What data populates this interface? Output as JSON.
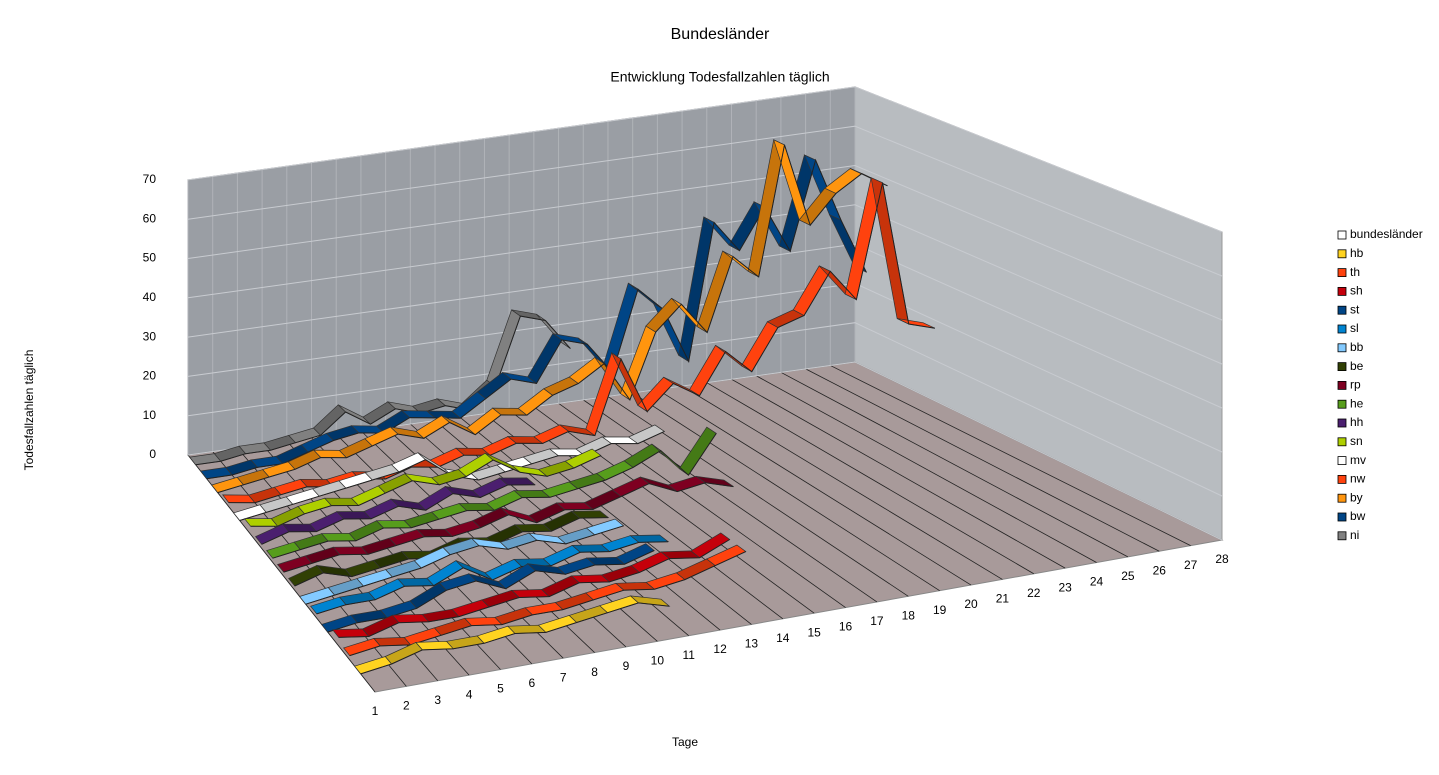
{
  "chart_data": {
    "type": "line3d",
    "title": "Bundesländer",
    "subtitle": "Entwicklung Todesfallzahlen täglich",
    "x_label": "Tage",
    "y_label": "Todesfallzahlen täglich",
    "categories": [
      1,
      2,
      3,
      4,
      5,
      6,
      7,
      8,
      9,
      10,
      11,
      12,
      13,
      14,
      15,
      16,
      17,
      18,
      19,
      20,
      21,
      22,
      23,
      24,
      25,
      26,
      27,
      28
    ],
    "ylim": [
      0,
      70
    ],
    "yticks": [
      0,
      10,
      20,
      30,
      40,
      50,
      60,
      70
    ],
    "grid": true,
    "legend": "right",
    "series": [
      {
        "name": "bundesländer",
        "color": "#ffffff",
        "values": [
          null,
          null,
          null,
          null,
          null,
          null,
          null,
          null,
          null,
          null,
          null,
          null,
          null,
          null,
          null,
          null,
          null,
          null,
          null,
          null,
          null,
          null,
          null,
          null,
          null,
          null,
          null,
          null
        ]
      },
      {
        "name": "hb",
        "color": "#ffd320",
        "values": [
          0,
          1,
          3,
          2,
          2,
          3,
          2,
          3,
          4,
          5,
          3,
          null,
          null,
          null,
          null,
          null,
          null,
          null,
          null,
          null,
          null,
          null,
          null,
          null,
          null,
          null,
          null,
          null
        ]
      },
      {
        "name": "th",
        "color": "#ff420e",
        "values": [
          1,
          2,
          1,
          2,
          3,
          2,
          3,
          3,
          4,
          5,
          4,
          5,
          7,
          9,
          null,
          null,
          null,
          null,
          null,
          null,
          null,
          null,
          null,
          null,
          null,
          null,
          null,
          null
        ]
      },
      {
        "name": "sh",
        "color": "#c5000b",
        "values": [
          2,
          1,
          3,
          2,
          2,
          3,
          4,
          3,
          5,
          4,
          5,
          7,
          6,
          9,
          null,
          null,
          null,
          null,
          null,
          null,
          null,
          null,
          null,
          null,
          null,
          null,
          null,
          null
        ]
      },
      {
        "name": "st",
        "color": "#004586",
        "values": [
          0,
          1,
          1,
          2,
          5,
          6,
          3,
          6,
          4,
          5,
          4,
          6,
          null,
          null,
          null,
          null,
          null,
          null,
          null,
          null,
          null,
          null,
          null,
          null,
          null,
          null,
          null,
          null
        ]
      },
      {
        "name": "sl",
        "color": "#0084d1",
        "values": [
          1,
          2,
          2,
          4,
          3,
          6,
          2,
          4,
          3,
          5,
          4,
          5,
          4,
          null,
          null,
          null,
          null,
          null,
          null,
          null,
          null,
          null,
          null,
          null,
          null,
          null,
          null,
          null
        ]
      },
      {
        "name": "bb",
        "color": "#83caff",
        "values": [
          0,
          1,
          2,
          3,
          4,
          6,
          7,
          5,
          6,
          4,
          5,
          6,
          null,
          null,
          null,
          null,
          null,
          null,
          null,
          null,
          null,
          null,
          null,
          null,
          null,
          null,
          null,
          null
        ]
      },
      {
        "name": "be",
        "color": "#314004",
        "values": [
          1,
          3,
          1,
          2,
          3,
          2,
          4,
          3,
          5,
          4,
          6,
          5,
          null,
          null,
          null,
          null,
          null,
          null,
          null,
          null,
          null,
          null,
          null,
          null,
          null,
          null,
          null,
          null
        ]
      },
      {
        "name": "rp",
        "color": "#7e0021",
        "values": [
          1,
          2,
          3,
          2,
          3,
          4,
          3,
          4,
          6,
          3,
          5,
          4,
          6,
          8,
          5,
          6,
          4,
          null,
          null,
          null,
          null,
          null,
          null,
          null,
          null,
          null,
          null,
          null
        ]
      },
      {
        "name": "he",
        "color": "#579d1c",
        "values": [
          1,
          2,
          3,
          2,
          4,
          3,
          4,
          5,
          4,
          6,
          5,
          6,
          7,
          9,
          12,
          5,
          14,
          null,
          null,
          null,
          null,
          null,
          null,
          null,
          null,
          null,
          null,
          null
        ]
      },
      {
        "name": "hh",
        "color": "#4b1f6f",
        "values": [
          1,
          3,
          2,
          4,
          3,
          5,
          3,
          6,
          4,
          6,
          5,
          null,
          null,
          null,
          null,
          null,
          null,
          null,
          null,
          null,
          null,
          null,
          null,
          null,
          null,
          null,
          null,
          null
        ]
      },
      {
        "name": "sn",
        "color": "#aecf00",
        "values": [
          2,
          1,
          3,
          4,
          3,
          5,
          7,
          5,
          6,
          9,
          5,
          3,
          4,
          6,
          null,
          null,
          null,
          null,
          null,
          null,
          null,
          null,
          null,
          null,
          null,
          null,
          null,
          null
        ]
      },
      {
        "name": "mv",
        "color": "#ffffff",
        "values": [
          0,
          1,
          2,
          3,
          4,
          5,
          6,
          8,
          3,
          1,
          2,
          3,
          4,
          3,
          5,
          4,
          6,
          null,
          null,
          null,
          null,
          null,
          null,
          null,
          null,
          null,
          null,
          null
        ]
      },
      {
        "name": "nw",
        "color": "#ff420e",
        "values": [
          1,
          0,
          1,
          2,
          1,
          2,
          1,
          3,
          2,
          4,
          3,
          5,
          4,
          6,
          4,
          22,
          8,
          14,
          10,
          20,
          14,
          24,
          26,
          36,
          28,
          56,
          20,
          18
        ]
      },
      {
        "name": "by",
        "color": "#ff950e",
        "values": [
          0,
          1,
          2,
          3,
          5,
          4,
          6,
          8,
          6,
          9,
          5,
          9,
          8,
          12,
          14,
          18,
          8,
          24,
          30,
          22,
          40,
          34,
          66,
          45,
          52,
          56,
          52,
          null
        ]
      },
      {
        "name": "bw",
        "color": "#004586",
        "values": [
          0,
          0,
          1,
          1,
          3,
          5,
          6,
          5,
          8,
          7,
          6,
          10,
          14,
          12,
          22,
          20,
          12,
          32,
          26,
          12,
          46,
          38,
          48,
          36,
          58,
          42,
          28,
          null
        ]
      },
      {
        "name": "ni",
        "color": "#808080",
        "values": [
          0,
          0,
          1,
          1,
          2,
          3,
          8,
          4,
          7,
          5,
          6,
          4,
          9,
          26,
          24,
          16,
          null,
          null,
          null,
          null,
          null,
          null,
          null,
          null,
          null,
          null,
          null,
          null
        ]
      }
    ]
  }
}
